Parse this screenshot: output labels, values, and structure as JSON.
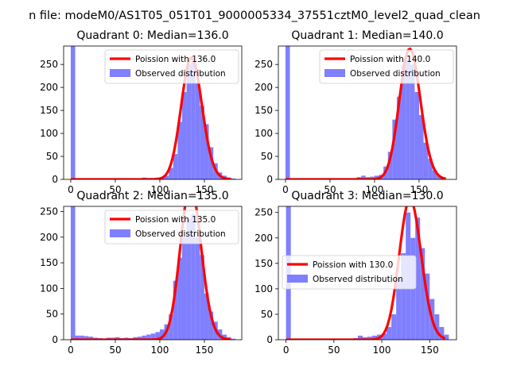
{
  "suptitle": "n file: modeM0/AS1T05_051T01_9000005334_37551cztM0_level2_quad_clean",
  "colors": {
    "hist": "#7f7fff",
    "curve": "#ff0000",
    "axis": "#000000"
  },
  "chart_data": [
    {
      "type": "bar",
      "title": "Quadrant 0: Median=136.0",
      "xlim": [
        -8,
        192
      ],
      "ylim": [
        0,
        290
      ],
      "xticks": [
        0,
        50,
        100,
        150
      ],
      "yticks": [
        0,
        50,
        100,
        150,
        200,
        250
      ],
      "legend": {
        "placement": "top-right",
        "curve_label": "Poission with 136.0",
        "hist_label": "Observed distribution"
      },
      "median": 136.0,
      "histogram": {
        "bin_width": 5,
        "bin_left_edges": [
          0,
          35,
          80,
          85,
          90,
          95,
          100,
          105,
          110,
          115,
          120,
          125,
          130,
          135,
          140,
          145,
          150,
          155,
          160,
          165,
          170,
          175,
          180
        ],
        "counts": [
          295,
          0,
          4,
          3,
          3,
          4,
          5,
          8,
          25,
          55,
          125,
          190,
          250,
          255,
          210,
          160,
          120,
          70,
          35,
          15,
          8,
          4,
          2
        ]
      }
    },
    {
      "type": "bar",
      "title": "Quadrant 1: Median=140.0",
      "xlim": [
        -8,
        192
      ],
      "ylim": [
        0,
        290
      ],
      "xticks": [
        0,
        50,
        100,
        150
      ],
      "yticks": [
        0,
        50,
        100,
        150,
        200,
        250
      ],
      "legend": {
        "placement": "top-right",
        "curve_label": "Poission with 140.0",
        "hist_label": "Observed distribution"
      },
      "median": 140.0,
      "histogram": {
        "bin_width": 5,
        "bin_left_edges": [
          0,
          80,
          85,
          90,
          95,
          100,
          105,
          110,
          115,
          120,
          125,
          130,
          135,
          140,
          145,
          150,
          155,
          160,
          165,
          170,
          175
        ],
        "counts": [
          295,
          5,
          8,
          5,
          6,
          8,
          10,
          28,
          60,
          130,
          180,
          250,
          260,
          250,
          190,
          140,
          80,
          45,
          20,
          8,
          3
        ]
      }
    },
    {
      "type": "bar",
      "title": "Quadrant 2: Median=135.0",
      "xlim": [
        -8,
        192
      ],
      "ylim": [
        0,
        260
      ],
      "xticks": [
        0,
        50,
        100,
        150
      ],
      "yticks": [
        0,
        50,
        100,
        150,
        200,
        250
      ],
      "legend": {
        "placement": "top-right",
        "curve_label": "Poission with 135.0",
        "hist_label": "Observed distribution"
      },
      "median": 135.0,
      "histogram": {
        "bin_width": 5,
        "bin_left_edges": [
          0,
          5,
          10,
          15,
          20,
          25,
          30,
          40,
          45,
          50,
          55,
          60,
          65,
          70,
          75,
          80,
          85,
          90,
          95,
          100,
          105,
          110,
          115,
          120,
          125,
          130,
          135,
          140,
          145,
          150,
          155,
          160,
          165,
          170,
          175,
          180
        ],
        "counts": [
          265,
          8,
          8,
          7,
          6,
          4,
          3,
          4,
          4,
          5,
          3,
          4,
          3,
          5,
          6,
          8,
          10,
          12,
          15,
          20,
          30,
          50,
          115,
          160,
          200,
          235,
          245,
          200,
          165,
          90,
          55,
          35,
          20,
          10,
          5,
          2
        ]
      }
    },
    {
      "type": "bar",
      "title": "Quadrant 3: Median=130.0",
      "xlim": [
        -8,
        178
      ],
      "ylim": [
        0,
        262
      ],
      "xticks": [
        0,
        50,
        100,
        150
      ],
      "yticks": [
        0,
        50,
        100,
        150,
        200,
        250
      ],
      "legend": {
        "placement": "center-left",
        "curve_label": "Poission with 130.0",
        "hist_label": "Observed distribution"
      },
      "median": 130.0,
      "histogram": {
        "bin_width": 5,
        "bin_left_edges": [
          0,
          70,
          75,
          80,
          85,
          90,
          95,
          100,
          105,
          110,
          115,
          120,
          125,
          130,
          135,
          140,
          145,
          150,
          155,
          160,
          165
        ],
        "counts": [
          265,
          3,
          8,
          5,
          6,
          8,
          10,
          12,
          25,
          50,
          120,
          170,
          250,
          200,
          240,
          180,
          130,
          80,
          50,
          25,
          10
        ]
      }
    }
  ]
}
